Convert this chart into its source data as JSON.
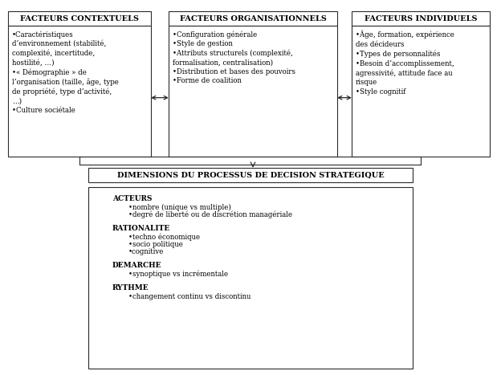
{
  "bg_color": "#ffffff",
  "box_edge_color": "#2b2b2b",
  "box_face_color": "#ffffff",
  "arrow_color": "#2b2b2b",
  "font_family": "serif",
  "header_fontsize": 7.0,
  "body_fontsize": 6.2,
  "header_left": "FACTEURS CONTEXTUELS",
  "header_center": "FACTEURS ORGANISATIONNELS",
  "header_right": "FACTEURS INDIVIDUELS",
  "box_left_text": "•Caractéristiques\nd’environnement (stabilité,\ncomplexité, incertitude,\nhostilité, …)\n•« Démographie » de\nl’organisation (taille, âge, type\nde propriété, type d’activité,\n…)\n•Culture sociétale",
  "box_center_text": "•Configuration générale\n•Style de gestion\n•Attributs structurels (complexité,\nformalisation, centralisation)\n•Distribution et bases des pouvoirs\n•Forme de coalition",
  "box_right_text": "•Âge, formation, expérience\ndes décideurs\n•Types de personnalités\n•Besoin d’accomplissement,\nagressivité, attitude face au\nrisque\n•Style cognitif",
  "mid_box_label": "DIMENSIONS DU PROCESSUS DE DECISION STRATEGIQUE",
  "bottom_section_titles": [
    "ACTEURS",
    "RATIONALITE",
    "DEMARCHE",
    "RYTHME"
  ],
  "bottom_section_items": [
    [
      "•nombre (unique vs multiple)",
      "•degré de liberté ou de discrétion managériale"
    ],
    [
      "•techno économique",
      "•socio politique",
      "•cognitive"
    ],
    [
      "•synoptique vs incrémentale"
    ],
    [
      "•changement continu vs discontinu"
    ]
  ]
}
